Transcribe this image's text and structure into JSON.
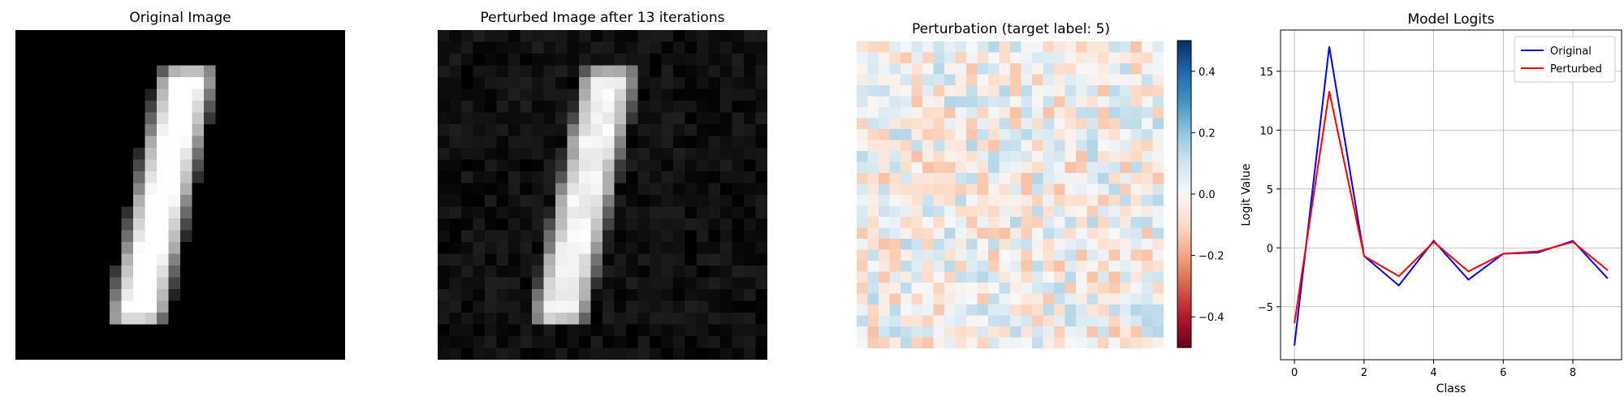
{
  "chart_data": [
    {
      "type": "heatmap",
      "title": "Original Image",
      "colormap": "gray",
      "value_range": [
        0,
        1
      ],
      "grid_size": [
        28,
        28
      ],
      "digit_shape": "1",
      "note_axes": "off"
    },
    {
      "type": "heatmap",
      "title": "Perturbed Image after 13 iterations",
      "colormap": "gray",
      "value_range": [
        0,
        1
      ],
      "grid_size": [
        28,
        28
      ],
      "digit_shape": "1",
      "background_noise_max": 0.12
    },
    {
      "type": "heatmap",
      "title": "Perturbation (target label: 5)",
      "colormap": "RdBu",
      "value_range": [
        -0.5,
        0.5
      ],
      "grid_size": [
        28,
        28
      ],
      "colorbar": {
        "ticks": [
          0.4,
          0.2,
          0.0,
          -0.2,
          -0.4
        ],
        "tick_labels": [
          "0.4",
          "0.2",
          "0.0",
          "−0.2",
          "−0.4"
        ]
      }
    },
    {
      "type": "line",
      "title": "Model Logits",
      "xlabel": "Class",
      "ylabel": "Logit Value",
      "x": [
        0,
        1,
        2,
        3,
        4,
        5,
        6,
        7,
        8,
        9
      ],
      "xlim": [
        -0.4,
        9.4
      ],
      "ylim": [
        -9.5,
        18.5
      ],
      "xticks": [
        0,
        2,
        4,
        6,
        8
      ],
      "xtick_labels": [
        "0",
        "2",
        "4",
        "6",
        "8"
      ],
      "yticks": [
        -5,
        0,
        5,
        10,
        15
      ],
      "ytick_labels": [
        "−5",
        "0",
        "5",
        "10",
        "15"
      ],
      "grid": true,
      "legend": "top-right",
      "series": [
        {
          "name": "Original",
          "color": "#0000ff",
          "values": [
            -8.3,
            17.1,
            -0.7,
            -3.2,
            0.6,
            -2.7,
            -0.5,
            -0.4,
            0.6,
            -2.6
          ]
        },
        {
          "name": "Perturbed",
          "color": "#ff0000",
          "values": [
            -6.4,
            13.3,
            -0.7,
            -2.4,
            0.5,
            -2.0,
            -0.5,
            -0.3,
            0.5,
            -1.9
          ]
        }
      ]
    }
  ]
}
